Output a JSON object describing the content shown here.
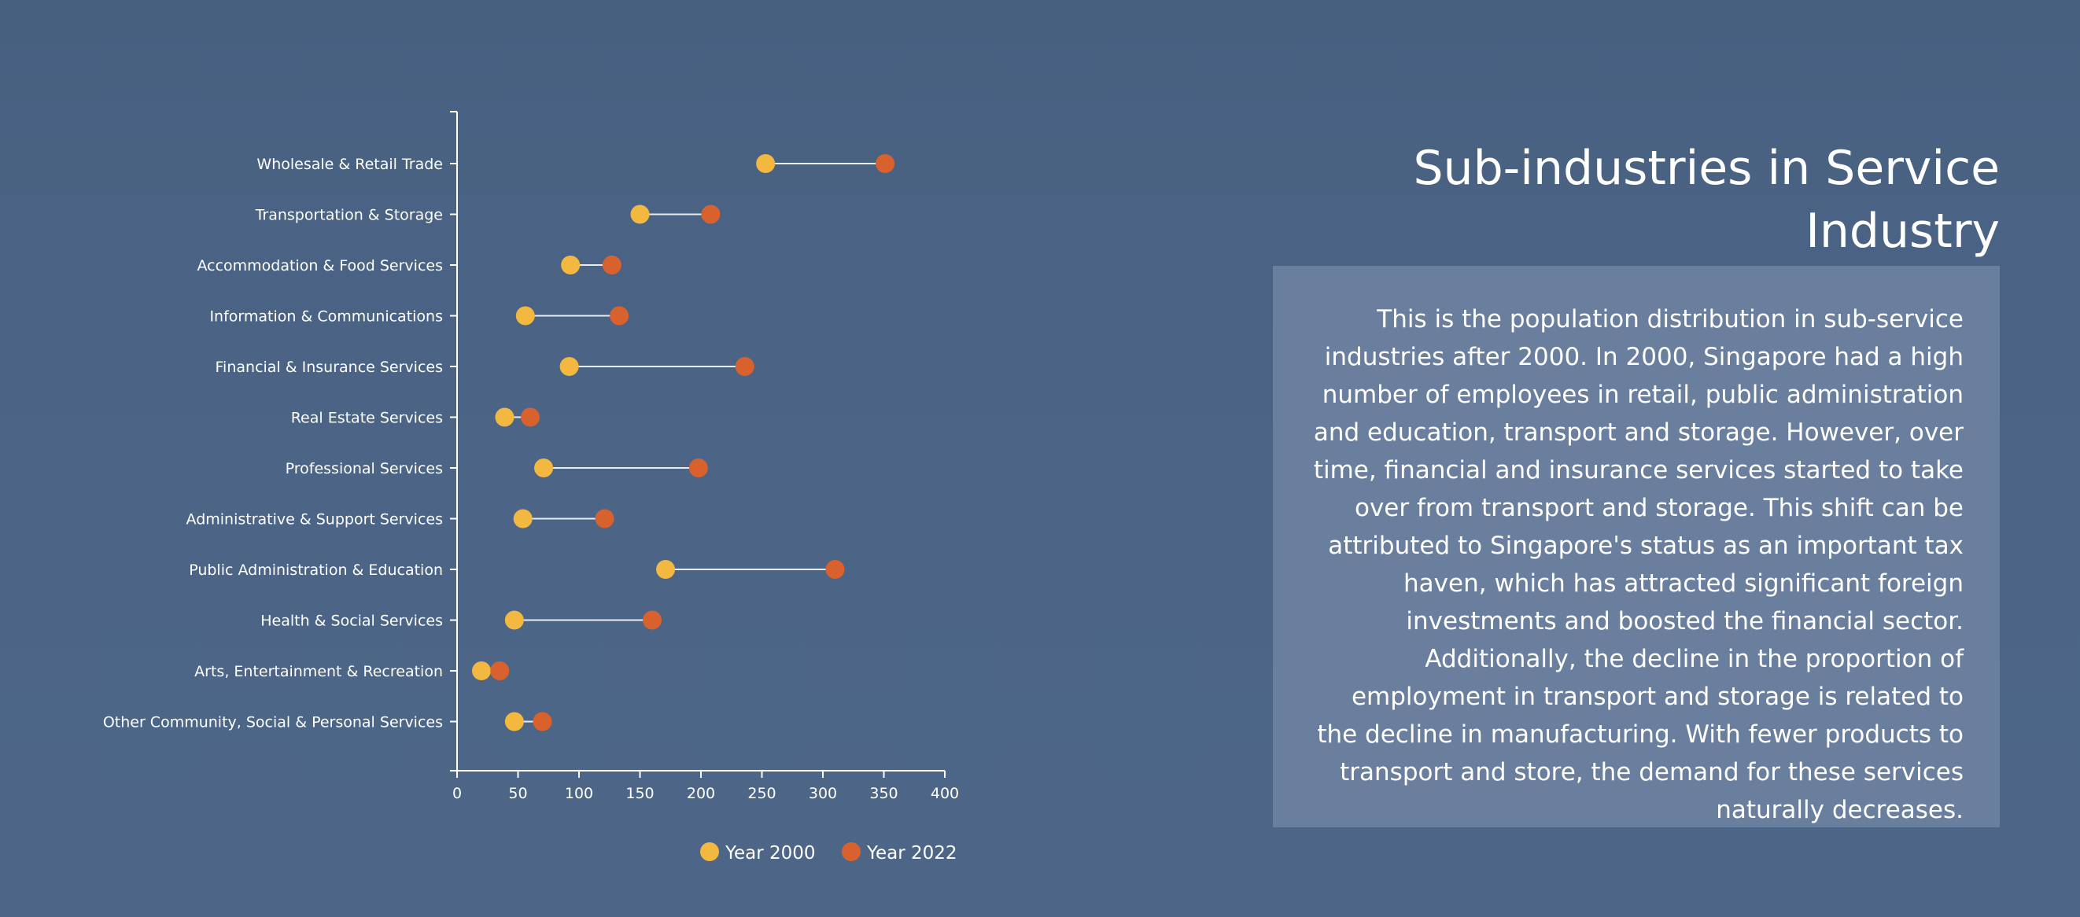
{
  "chart_data": {
    "type": "dumbbell",
    "title": "",
    "xlabel": "",
    "ylabel": "",
    "xlim": [
      0,
      400
    ],
    "x_ticks": [
      "0",
      "50",
      "100",
      "150",
      "200",
      "250",
      "300",
      "350",
      "400"
    ],
    "grid": false,
    "legend_position": "bottom",
    "categories": [
      "Wholesale & Retail Trade",
      "Transportation & Storage",
      "Accommodation & Food Services",
      "Information & Communications",
      "Financial & Insurance Services",
      "Real Estate Services",
      "Professional Services",
      "Administrative & Support Services",
      "Public Administration & Education",
      "Health & Social Services",
      "Arts, Entertainment & Recreation",
      "Other Community, Social & Personal Services"
    ],
    "series": [
      {
        "name": "Year 2000",
        "color": "#f2b83f",
        "values": [
          253,
          150,
          93,
          56,
          92,
          39,
          71,
          54,
          171,
          47,
          20,
          47
        ]
      },
      {
        "name": "Year 2022",
        "color": "#d9612e",
        "values": [
          351,
          208,
          127,
          133,
          236,
          60,
          198,
          121,
          310,
          160,
          35,
          70
        ]
      }
    ]
  },
  "side_panel": {
    "title": "Sub-industries in Service Industry",
    "description": "This is the population distribution in sub-service industries after 2000. In 2000, Singapore had a high number of employees in retail, public administration and education, transport and storage. However, over time, financial and insurance services started to take over from transport and storage. This shift can be attributed to Singapore's status as an important tax haven, which has attracted significant foreign investments and boosted the financial sector. Additionally, the decline in the proportion of employment in transport and storage is related to the decline in manufacturing. With fewer products to transport and store, the demand for these services naturally decreases."
  }
}
